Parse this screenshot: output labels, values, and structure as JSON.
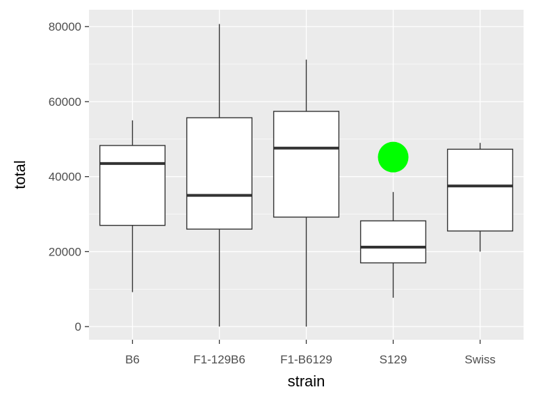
{
  "chart_data": {
    "type": "boxplot",
    "xlabel": "strain",
    "ylabel": "total",
    "ylim": [
      -3500,
      84500
    ],
    "y_ticks": [
      0,
      20000,
      40000,
      60000,
      80000
    ],
    "y_tick_labels": [
      "0",
      "20000",
      "40000",
      "60000",
      "80000"
    ],
    "categories": [
      "B6",
      "F1-129B6",
      "F1-B6129",
      "S129",
      "Swiss"
    ],
    "boxes": [
      {
        "category": "B6",
        "whisker_low": 9200,
        "q1": 27000,
        "median": 43500,
        "q3": 48300,
        "whisker_high": 55000
      },
      {
        "category": "F1-129B6",
        "whisker_low": 0,
        "q1": 26000,
        "median": 35000,
        "q3": 55700,
        "whisker_high": 80700
      },
      {
        "category": "F1-B6129",
        "whisker_low": 0,
        "q1": 29200,
        "median": 47600,
        "q3": 57400,
        "whisker_high": 71200
      },
      {
        "category": "S129",
        "whisker_low": 7700,
        "q1": 17000,
        "median": 21200,
        "q3": 28200,
        "whisker_high": 35900
      },
      {
        "category": "Swiss",
        "whisker_low": 20000,
        "q1": 25500,
        "median": 37500,
        "q3": 47300,
        "whisker_high": 49000
      }
    ],
    "outliers": [
      {
        "category": "S129",
        "value": 45200,
        "color": "#00ff00"
      }
    ],
    "grid": true,
    "colors": {
      "panel": "#ebebeb",
      "grid_major": "#ffffff",
      "box_fill": "#ffffff",
      "box_line": "#333333",
      "outlier": "#00ff00"
    }
  }
}
